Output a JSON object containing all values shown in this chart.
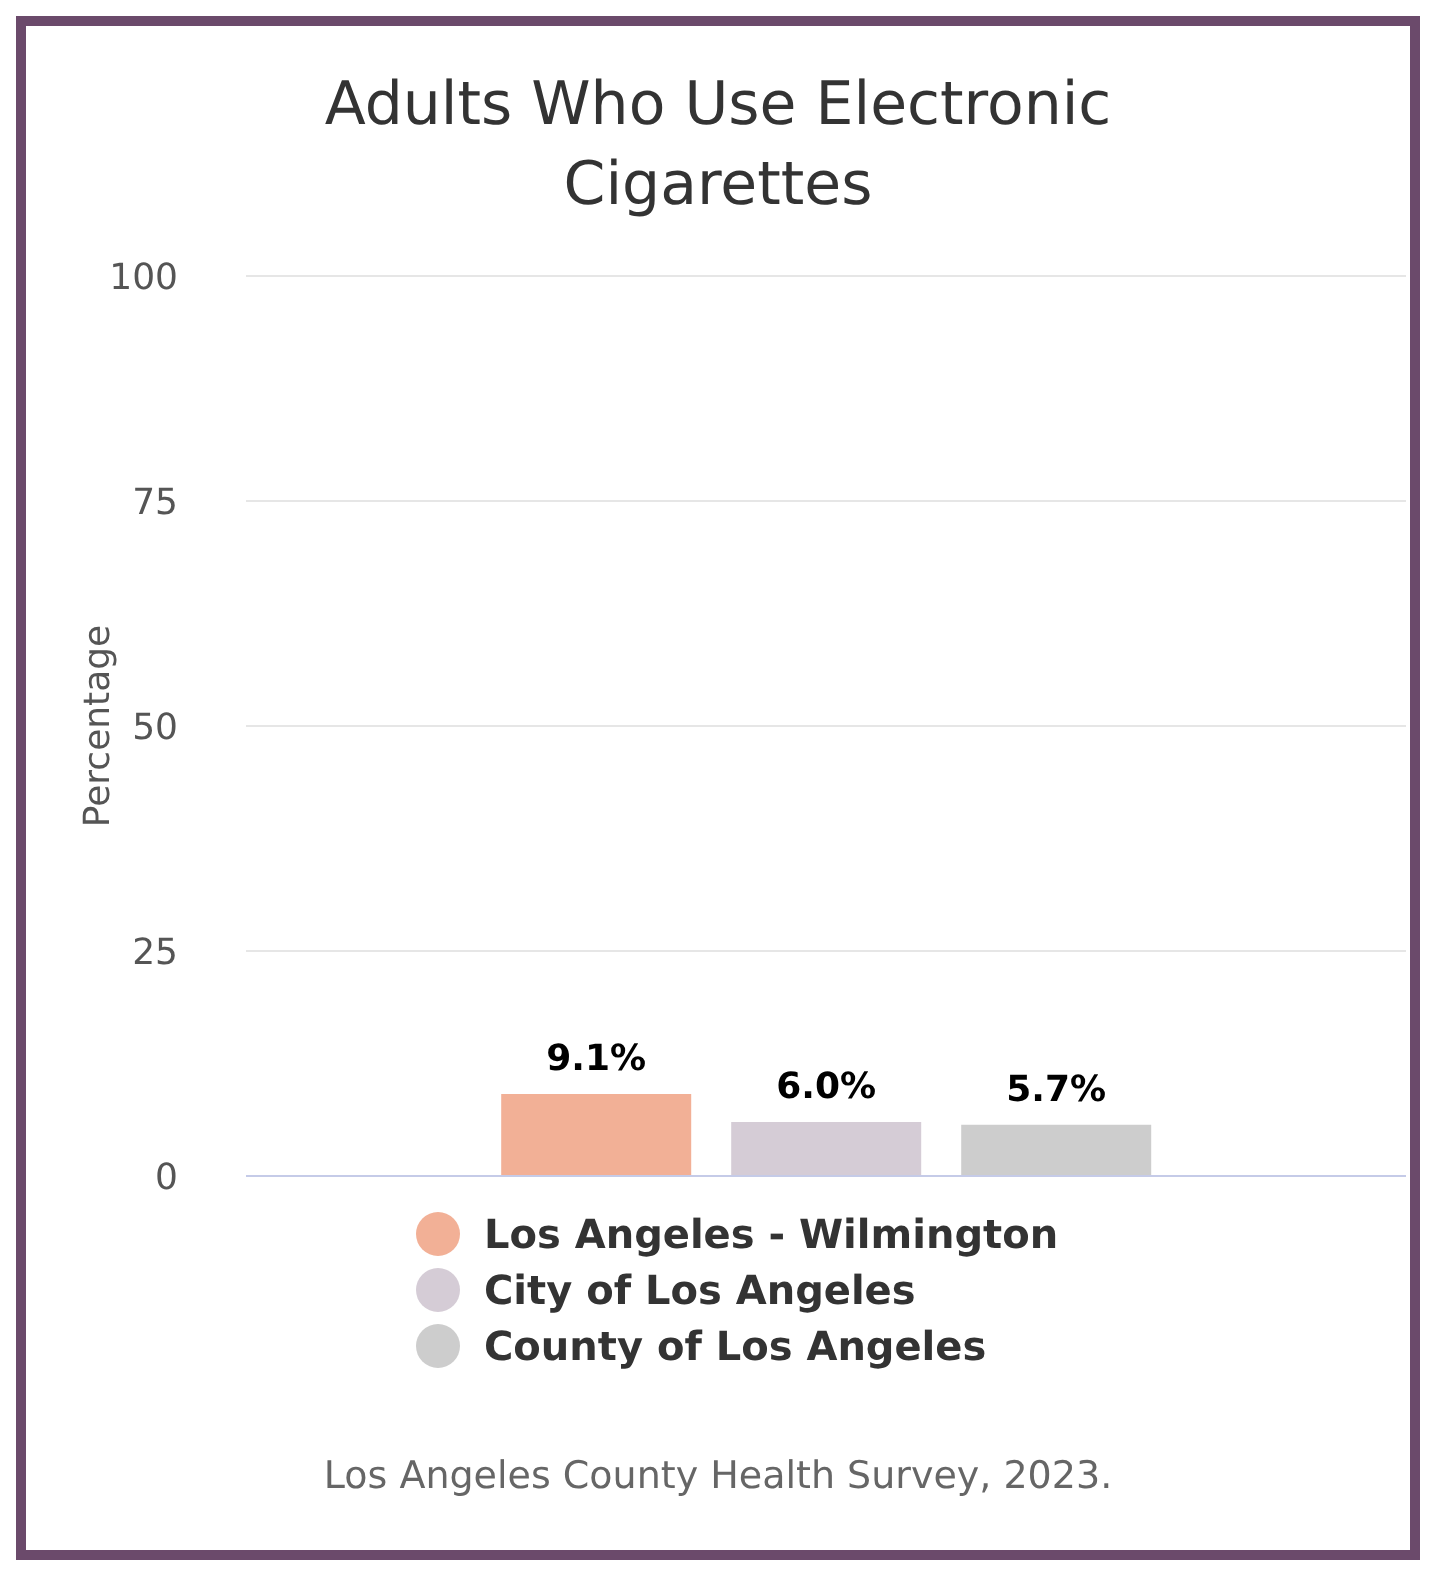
{
  "chart_data": {
    "type": "bar",
    "title": "Adults Who Use Electronic Cigarettes",
    "ylabel": "Percentage",
    "categories": [
      null
    ],
    "series": [
      {
        "name": "Los Angeles - Wilmington",
        "color": "#f2b096",
        "values": [
          9.1
        ],
        "value_labels": [
          "9.1%"
        ]
      },
      {
        "name": "City of Los Angeles",
        "color": "#d5ccd6",
        "values": [
          6.0
        ],
        "value_labels": [
          "6.0%"
        ]
      },
      {
        "name": "County of Los Angeles",
        "color": "#cdcdcd",
        "values": [
          5.7
        ],
        "value_labels": [
          "5.7%"
        ]
      }
    ],
    "ylim": [
      0,
      100
    ],
    "yticks": [
      0,
      25,
      50,
      75,
      100
    ],
    "grid": "y",
    "legend": "bottom",
    "annotations": [
      "Los Angeles County Health Survey, 2023."
    ]
  }
}
